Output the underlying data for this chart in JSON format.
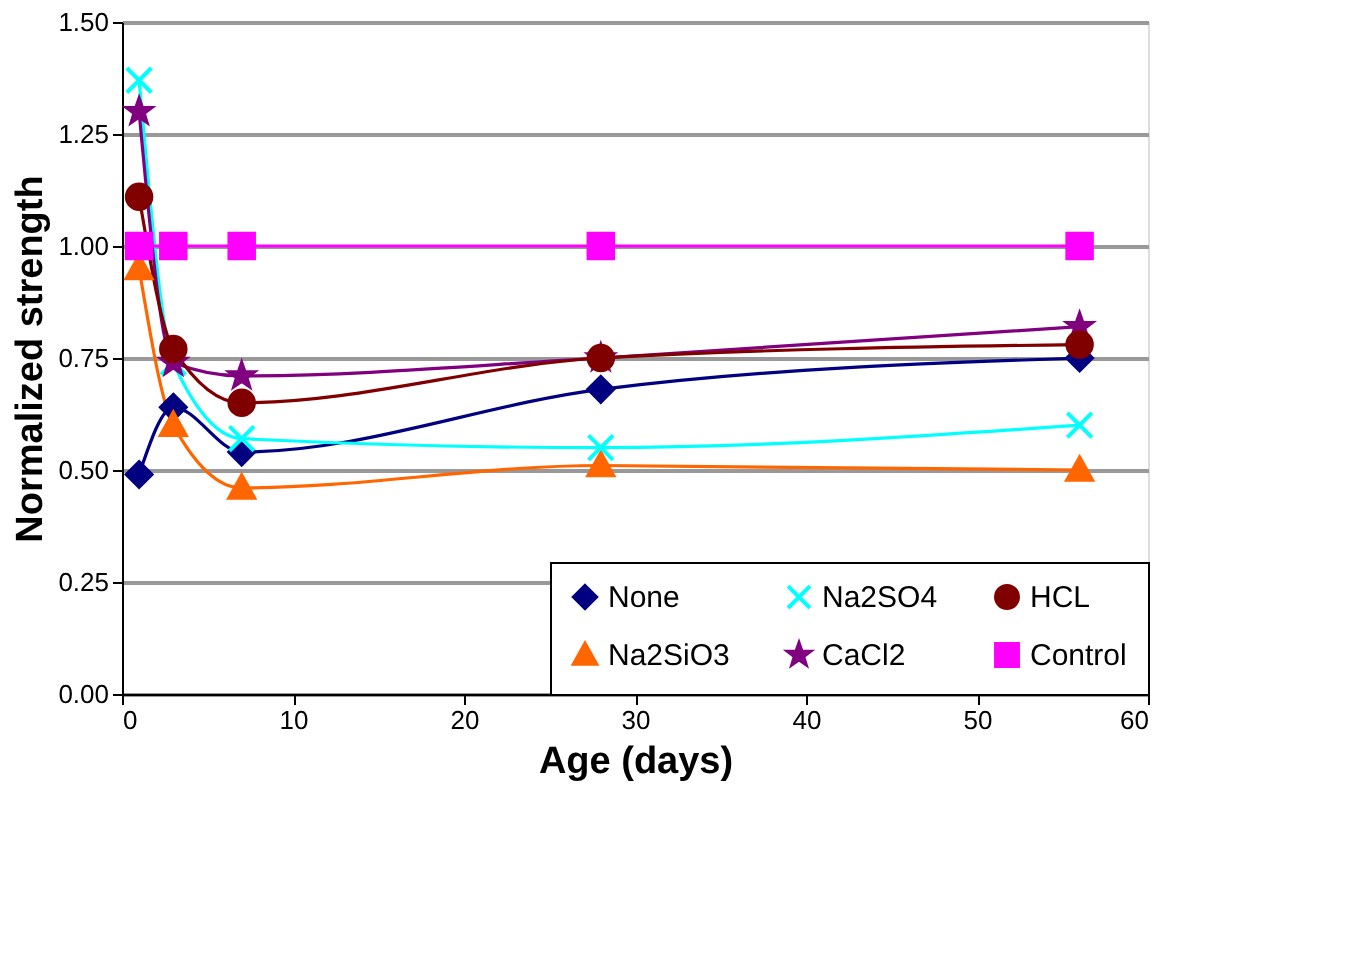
{
  "chart_data": {
    "type": "line",
    "xlabel": "Age (days)",
    "ylabel": "Normalized strength",
    "x": [
      1,
      3,
      7,
      28,
      56
    ],
    "series": [
      {
        "name": "None",
        "color": "#000080",
        "marker": "diamond",
        "values": [
          0.49,
          0.64,
          0.54,
          0.68,
          0.75
        ]
      },
      {
        "name": "Na2SiO3",
        "color": "#ff6600",
        "marker": "triangle",
        "values": [
          0.95,
          0.6,
          0.46,
          0.51,
          0.5
        ]
      },
      {
        "name": "Na2SO4",
        "color": "#00ffff",
        "marker": "cross",
        "values": [
          1.37,
          0.74,
          0.57,
          0.55,
          0.6
        ]
      },
      {
        "name": "CaCl2",
        "color": "#800080",
        "marker": "star",
        "values": [
          1.3,
          0.74,
          0.71,
          0.75,
          0.82
        ]
      },
      {
        "name": "HCL",
        "color": "#800000",
        "marker": "circle",
        "values": [
          1.11,
          0.77,
          0.65,
          0.75,
          0.78
        ]
      },
      {
        "name": "Control",
        "color": "#ff00ff",
        "marker": "square",
        "values": [
          1.0,
          1.0,
          1.0,
          1.0,
          1.0
        ]
      }
    ],
    "xlim": [
      0,
      60
    ],
    "xticks": [
      0,
      10,
      20,
      30,
      40,
      50,
      60
    ],
    "ylim": [
      0,
      1.5
    ],
    "yticks": [
      {
        "value": 0,
        "label": "0.00"
      },
      {
        "value": 0.25,
        "label": "0.25"
      },
      {
        "value": 0.5,
        "label": "0.50"
      },
      {
        "value": 0.75,
        "label": "0.75"
      },
      {
        "value": 1.0,
        "label": "1.00"
      },
      {
        "value": 1.25,
        "label": "1.25"
      },
      {
        "value": 1.5,
        "label": "1.50"
      }
    ],
    "grid": "y",
    "legend": "bottom right",
    "line_style": "solid"
  }
}
